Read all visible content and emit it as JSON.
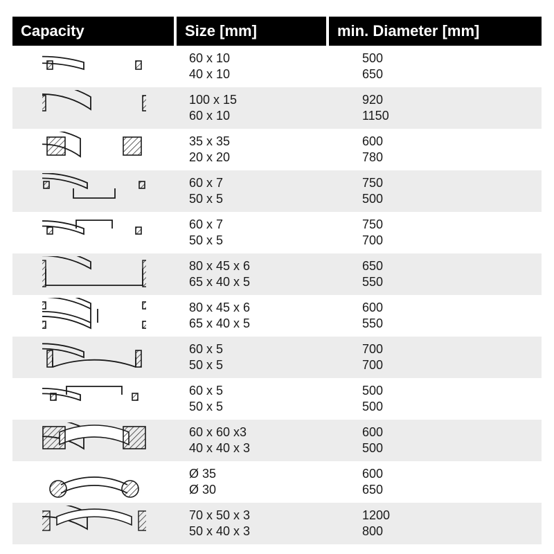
{
  "columns": [
    "Capacity",
    "Size [mm]",
    "min. Diameter [mm]"
  ],
  "stroke": "#1a1a1a",
  "hatch_fill": "#4a4a4a",
  "row_bg_alt": "#ececec",
  "header_bg": "#000000",
  "header_fg": "#ffffff",
  "text_color": "#1a1a1a",
  "fontsize_header": 22,
  "fontsize_cell": 18,
  "rows": [
    {
      "icon": "flat-shallow",
      "size": [
        "60 x 10",
        "40 x 10"
      ],
      "diam": [
        "500",
        "650"
      ],
      "alt": false
    },
    {
      "icon": "flat-deep",
      "size": [
        "100 x 15",
        "60 x 10"
      ],
      "diam": [
        "920",
        "1150"
      ],
      "alt": true
    },
    {
      "icon": "square",
      "size": [
        "35 x 35",
        "20 x 20"
      ],
      "diam": [
        "600",
        "780"
      ],
      "alt": false
    },
    {
      "icon": "tee-down",
      "size": [
        "60 x 7",
        "50 x 5"
      ],
      "diam": [
        "750",
        "500"
      ],
      "alt": true
    },
    {
      "icon": "tee-up",
      "size": [
        "60 x 7",
        "50 x 5"
      ],
      "diam": [
        "750",
        "700"
      ],
      "alt": false
    },
    {
      "icon": "channel-down",
      "size": [
        "80 x 45 x 6",
        "65 x 40 x 5"
      ],
      "diam": [
        "650",
        "550"
      ],
      "alt": true
    },
    {
      "icon": "ibeam",
      "size": [
        "80 x 45 x 6",
        "65 x 40 x 5"
      ],
      "diam": [
        "600",
        "550"
      ],
      "alt": false
    },
    {
      "icon": "angle-up",
      "size": [
        "60 x 5",
        "50 x 5"
      ],
      "diam": [
        "700",
        "700"
      ],
      "alt": true
    },
    {
      "icon": "angle-down",
      "size": [
        "60 x 5",
        "50 x 5"
      ],
      "diam": [
        "500",
        "500"
      ],
      "alt": false
    },
    {
      "icon": "box-square",
      "size": [
        "60 x 60 x3",
        "40 x 40 x 3"
      ],
      "diam": [
        "600",
        "500"
      ],
      "alt": true
    },
    {
      "icon": "round",
      "size": [
        "Ø 35",
        "Ø 30"
      ],
      "diam": [
        "600",
        "650"
      ],
      "alt": false
    },
    {
      "icon": "box-rect",
      "size": [
        "70 x 50 x 3",
        "50 x 40 x 3"
      ],
      "diam": [
        "1200",
        "800"
      ],
      "alt": true
    }
  ]
}
